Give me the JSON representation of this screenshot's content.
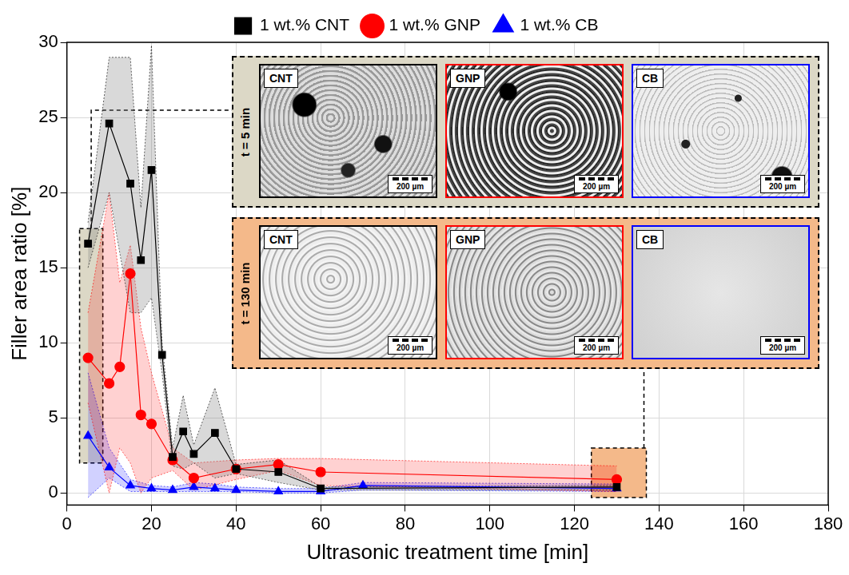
{
  "chart_data": {
    "type": "line",
    "x_label": "Ultrasonic treatment time [min]",
    "y_label": "Filler area ratio [%]",
    "xlim": [
      0,
      180
    ],
    "xticks": [
      0,
      20,
      40,
      60,
      80,
      100,
      120,
      140,
      160,
      180
    ],
    "ylim": [
      -0.8,
      30
    ],
    "yticks": [
      0,
      5,
      10,
      15,
      20,
      25,
      30
    ],
    "grid": true,
    "legend": "top",
    "series": [
      {
        "name": "1 wt.% CNT",
        "color": "#000000",
        "marker": "square",
        "line_style": "solid",
        "x": [
          5,
          10,
          15,
          17.5,
          20,
          22.5,
          25,
          27.5,
          30,
          35,
          40,
          50,
          60,
          130
        ],
        "values": [
          16.6,
          24.6,
          20.6,
          15.5,
          21.5,
          9.2,
          2.4,
          4.1,
          2.6,
          4.0,
          1.6,
          1.4,
          0.3,
          0.4
        ],
        "upper": [
          18,
          29,
          29,
          19,
          29.8,
          10,
          3,
          6.5,
          3.2,
          7,
          1.9,
          2.2,
          0.4,
          0.5
        ],
        "lower": [
          15,
          20,
          12,
          12,
          13,
          8,
          1.8,
          1.6,
          2,
          1,
          1.3,
          0.7,
          0.2,
          0.2
        ]
      },
      {
        "name": "1 wt.% GNP",
        "color": "#ff0000",
        "marker": "circle",
        "line_style": "solid",
        "x": [
          5,
          10,
          12.5,
          15,
          17.5,
          20,
          25,
          30,
          40,
          50,
          60,
          130
        ],
        "values": [
          9.0,
          7.3,
          8.4,
          14.6,
          5.2,
          4.6,
          2.2,
          1.0,
          1.6,
          1.9,
          1.4,
          0.9
        ],
        "upper": [
          12,
          20,
          14,
          16.5,
          11,
          8,
          3,
          2,
          2.2,
          2.3,
          2.3,
          1.8
        ],
        "lower": [
          6,
          0,
          3,
          2,
          0,
          1,
          1.5,
          0.2,
          0.9,
          1.5,
          0.5,
          0.1
        ]
      },
      {
        "name": "1 wt.% CB",
        "color": "#0000ff",
        "marker": "triangle",
        "line_style": "solid",
        "x": [
          5,
          10,
          15,
          20,
          25,
          30,
          35,
          40,
          50,
          60,
          70,
          130
        ],
        "values": [
          3.8,
          1.7,
          0.5,
          0.3,
          0.2,
          0.4,
          0.3,
          0.2,
          0.1,
          0.1,
          0.5,
          0.3
        ],
        "upper": [
          8,
          3,
          0.9,
          0.5,
          0.4,
          0.7,
          0.6,
          0.4,
          0.3,
          0.3,
          0.7,
          0.6
        ],
        "lower": [
          -0.3,
          1,
          0.1,
          0.1,
          0.1,
          0.1,
          0.1,
          0.1,
          0,
          0,
          0.2,
          0.1
        ]
      }
    ],
    "insets": [
      {
        "label": "t = 5 min",
        "color": "#dcd8c6",
        "region": {
          "xlim": [
            3,
            8.5
          ],
          "ylim": [
            2,
            17.6
          ]
        },
        "scale_bar": "200 µm",
        "panels": [
          {
            "label": "CNT",
            "color": "#000000"
          },
          {
            "label": "GNP",
            "color": "#ff0000"
          },
          {
            "label": "CB",
            "color": "#0000ff"
          }
        ]
      },
      {
        "label": "t = 130 min",
        "color": "#f4b98a",
        "region": {
          "xlim": [
            124,
            137
          ],
          "ylim": [
            -0.3,
            3
          ]
        },
        "scale_bar": "200 µm",
        "panels": [
          {
            "label": "CNT",
            "color": "#000000"
          },
          {
            "label": "GNP",
            "color": "#ff0000"
          },
          {
            "label": "CB",
            "color": "#0000ff"
          }
        ]
      }
    ]
  }
}
